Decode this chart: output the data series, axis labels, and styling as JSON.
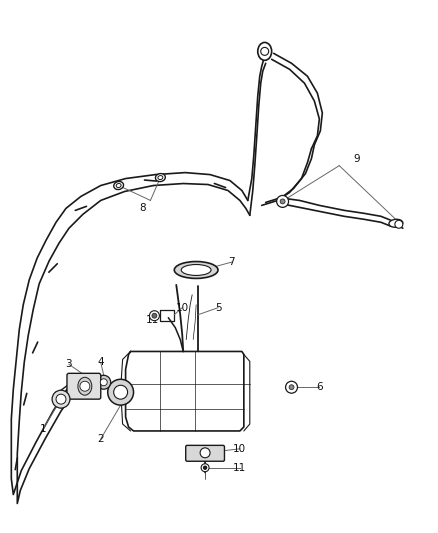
{
  "background_color": "#ffffff",
  "line_color": "#1a1a1a",
  "ann_color": "#666666",
  "fig_width": 4.38,
  "fig_height": 5.33,
  "dpi": 100
}
